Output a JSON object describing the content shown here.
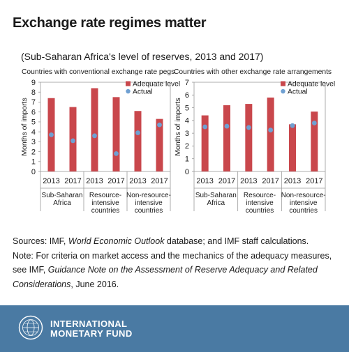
{
  "title": "Exchange rate regimes matter",
  "subtitle": "(Sub-Saharan Africa's level of reserves, 2013 and 2017)",
  "colors": {
    "adequate": "#c9474c",
    "actual": "#6fa0d2",
    "footer": "#4a7aa3"
  },
  "chart_data": [
    {
      "type": "bar",
      "title": "Countries with conventional exchange rate pegs",
      "ylabel": "Months of imports",
      "ylim": [
        0,
        9
      ],
      "yticks": [
        "0",
        "1",
        "2",
        "3",
        "4",
        "5",
        "6",
        "7",
        "8",
        "9"
      ],
      "categories": [
        "2013",
        "2017",
        "2013",
        "2017",
        "2013",
        "2017"
      ],
      "groups": [
        "Sub-Saharan Africa",
        "Resource-intensive countries",
        "Non-resource-intensive countries"
      ],
      "group_lines": [
        [
          "Sub-Saharan",
          "Africa"
        ],
        [
          "Resource-",
          "intensive",
          "countries"
        ],
        [
          "Non-resource-",
          "intensive",
          "countries"
        ]
      ],
      "series": [
        {
          "name": "Adequate level",
          "kind": "bar",
          "values": [
            7.4,
            6.5,
            8.4,
            7.5,
            6.1,
            5.3
          ]
        },
        {
          "name": "Actual",
          "kind": "marker",
          "values": [
            3.7,
            3.1,
            3.6,
            1.8,
            3.9,
            4.7
          ]
        }
      ],
      "legend": "top-right"
    },
    {
      "type": "bar",
      "title": "Countries with other exchange rate arrangements",
      "ylabel": "Months of imports",
      "ylim": [
        0,
        7
      ],
      "yticks": [
        "0",
        "1",
        "2",
        "3",
        "4",
        "5",
        "6",
        "7"
      ],
      "categories": [
        "2013",
        "2017",
        "2013",
        "2017",
        "2013",
        "2017"
      ],
      "groups": [
        "Sub-Saharan Africa",
        "Resource-intensive countries",
        "Non-resource-intensive countries"
      ],
      "group_lines": [
        [
          "Sub-Saharan",
          "Africa"
        ],
        [
          "Resource-",
          "intensive",
          "countries"
        ],
        [
          "Non-resource-",
          "intensive",
          "countries"
        ]
      ],
      "series": [
        {
          "name": "Adequate level",
          "kind": "bar",
          "values": [
            4.4,
            5.2,
            5.3,
            5.8,
            3.7,
            4.7
          ]
        },
        {
          "name": "Actual",
          "kind": "marker",
          "values": [
            3.5,
            3.55,
            3.45,
            3.25,
            3.6,
            3.8
          ]
        }
      ],
      "legend": "top-right"
    }
  ],
  "notes": {
    "sources_prefix": "Sources: IMF, ",
    "sources_italic": "World Economic Outlook",
    "sources_suffix": " database; and IMF staff calculations.",
    "note_prefix": "Note: For criteria on market access and the mechanics of the adequacy measures, see IMF, ",
    "note_italic": "Guidance Note on the Assessment of Reserve Adequacy and Related Considerations",
    "note_suffix": ", June 2016."
  },
  "footer": {
    "org_line1": "INTERNATIONAL",
    "org_line2": "MONETARY FUND",
    "seal_icon": "imf-seal-icon"
  }
}
